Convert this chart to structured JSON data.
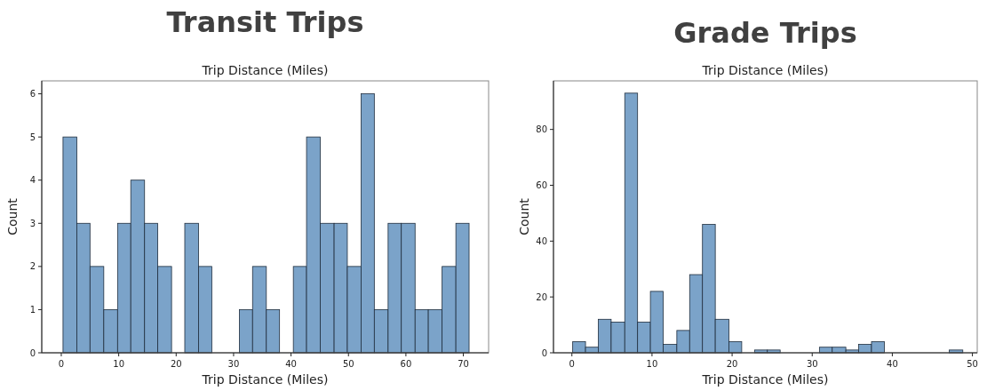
{
  "chart_data": [
    {
      "type": "histogram",
      "title": "Transit Trips",
      "subtitle": "Trip Distance (Miles)",
      "xlabel": "Trip Distance (Miles)",
      "ylabel": "Count",
      "color": "#7ba3c9",
      "bins": [
        0.3,
        2.7,
        5.0,
        7.4,
        9.8,
        12.1,
        14.5,
        16.8,
        19.2,
        21.5,
        23.9,
        26.2,
        31.0,
        33.3,
        35.7,
        38.0,
        40.4,
        42.7,
        45.1,
        47.5,
        49.8,
        52.2,
        54.5,
        56.9,
        59.2,
        61.6,
        63.9,
        66.3,
        68.7,
        71.0
      ],
      "values": [
        5,
        3,
        2,
        1,
        3,
        4,
        3,
        2,
        0,
        3,
        2,
        0,
        1,
        2,
        1,
        0,
        2,
        5,
        3,
        3,
        2,
        6,
        1,
        3,
        3,
        1,
        1,
        2,
        3
      ],
      "xlim": [
        -3.4,
        74.4
      ],
      "ylim": [
        0,
        6.3
      ],
      "xticks": [
        0,
        10,
        20,
        30,
        40,
        50,
        60,
        70
      ],
      "yticks": [
        0,
        1,
        2,
        3,
        4,
        5,
        6
      ]
    },
    {
      "type": "histogram",
      "title": "Grade Trips",
      "subtitle": "Trip Distance (Miles)",
      "xlabel": "Trip Distance (Miles)",
      "ylabel": "Count",
      "color": "#7ba3c9",
      "bins": [
        0.1,
        1.7,
        3.3,
        4.9,
        6.6,
        8.2,
        9.8,
        11.4,
        13.1,
        14.7,
        16.3,
        17.9,
        19.6,
        21.2,
        22.8,
        24.4,
        26.0,
        30.9,
        32.5,
        34.2,
        35.8,
        37.4,
        39.0,
        47.1,
        48.8
      ],
      "values": [
        4,
        2,
        12,
        11,
        93,
        11,
        22,
        3,
        8,
        28,
        46,
        12,
        4,
        0,
        1,
        1,
        0,
        2,
        2,
        1,
        3,
        4,
        0,
        1
      ],
      "xlim": [
        -2.3,
        50.6
      ],
      "ylim": [
        0,
        97.4
      ],
      "xticks": [
        0,
        10,
        20,
        30,
        40,
        50
      ],
      "yticks": [
        0,
        20,
        40,
        60,
        80
      ]
    }
  ]
}
